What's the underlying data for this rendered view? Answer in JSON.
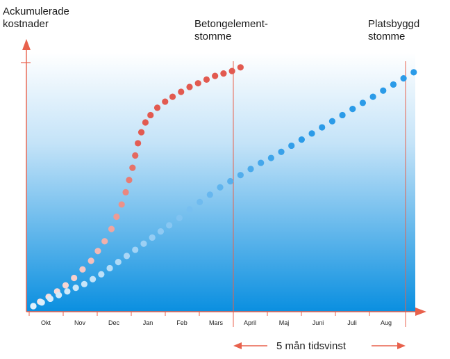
{
  "chart_data": {
    "type": "scatter",
    "ylabel": "Ackumulerade\nkostnader",
    "categories": [
      "Okt",
      "Nov",
      "Dec",
      "Jan",
      "Feb",
      "Mars",
      "April",
      "Maj",
      "Juni",
      "Juli",
      "Aug"
    ],
    "xlim": [
      0,
      11
    ],
    "ylim": [
      0,
      100
    ],
    "grid": false,
    "background_gradient": [
      "#ffffff",
      "#0a8fe0"
    ],
    "series": [
      {
        "name": "Betongelement-\nstomme",
        "color": "#e25a50",
        "points": [
          {
            "x": 0.0,
            "y": 0.0
          },
          {
            "x": 0.2,
            "y": 1.8
          },
          {
            "x": 0.45,
            "y": 3.8
          },
          {
            "x": 0.7,
            "y": 6.0
          },
          {
            "x": 0.95,
            "y": 8.5
          },
          {
            "x": 1.2,
            "y": 11.5
          },
          {
            "x": 1.45,
            "y": 15.0
          },
          {
            "x": 1.7,
            "y": 18.5
          },
          {
            "x": 1.9,
            "y": 22.5
          },
          {
            "x": 2.1,
            "y": 26.5
          },
          {
            "x": 2.3,
            "y": 31.5
          },
          {
            "x": 2.45,
            "y": 36.5
          },
          {
            "x": 2.6,
            "y": 41.5
          },
          {
            "x": 2.72,
            "y": 46.5
          },
          {
            "x": 2.82,
            "y": 51.5
          },
          {
            "x": 2.92,
            "y": 56.5
          },
          {
            "x": 3.0,
            "y": 61.5
          },
          {
            "x": 3.08,
            "y": 66.5
          },
          {
            "x": 3.18,
            "y": 71.0
          },
          {
            "x": 3.3,
            "y": 75.0
          },
          {
            "x": 3.45,
            "y": 78.0
          },
          {
            "x": 3.65,
            "y": 81.0
          },
          {
            "x": 3.88,
            "y": 83.5
          },
          {
            "x": 4.1,
            "y": 85.5
          },
          {
            "x": 4.35,
            "y": 87.5
          },
          {
            "x": 4.6,
            "y": 89.5
          },
          {
            "x": 4.85,
            "y": 91.0
          },
          {
            "x": 5.1,
            "y": 92.5
          },
          {
            "x": 5.35,
            "y": 94.0
          },
          {
            "x": 5.6,
            "y": 95.0
          },
          {
            "x": 5.85,
            "y": 96.0
          },
          {
            "x": 6.1,
            "y": 97.5
          }
        ]
      },
      {
        "name": "Platsbyggd\nstomme",
        "color": "#2b9be8",
        "points": [
          {
            "x": 0.0,
            "y": 0.0
          },
          {
            "x": 0.25,
            "y": 1.5
          },
          {
            "x": 0.5,
            "y": 3.0
          },
          {
            "x": 0.75,
            "y": 4.5
          },
          {
            "x": 1.0,
            "y": 6.0
          },
          {
            "x": 1.25,
            "y": 7.5
          },
          {
            "x": 1.5,
            "y": 9.0
          },
          {
            "x": 1.75,
            "y": 11.0
          },
          {
            "x": 2.0,
            "y": 13.0
          },
          {
            "x": 2.25,
            "y": 15.5
          },
          {
            "x": 2.5,
            "y": 18.0
          },
          {
            "x": 2.75,
            "y": 20.5
          },
          {
            "x": 3.0,
            "y": 23.0
          },
          {
            "x": 3.25,
            "y": 25.5
          },
          {
            "x": 3.5,
            "y": 28.0
          },
          {
            "x": 3.75,
            "y": 30.5
          },
          {
            "x": 4.0,
            "y": 33.0
          },
          {
            "x": 4.3,
            "y": 36.0
          },
          {
            "x": 4.6,
            "y": 39.5
          },
          {
            "x": 4.9,
            "y": 42.5
          },
          {
            "x": 5.2,
            "y": 45.5
          },
          {
            "x": 5.5,
            "y": 48.5
          },
          {
            "x": 5.8,
            "y": 51.0
          },
          {
            "x": 6.1,
            "y": 53.5
          },
          {
            "x": 6.4,
            "y": 56.0
          },
          {
            "x": 6.7,
            "y": 58.5
          },
          {
            "x": 7.0,
            "y": 60.5
          },
          {
            "x": 7.3,
            "y": 63.0
          },
          {
            "x": 7.6,
            "y": 65.5
          },
          {
            "x": 7.9,
            "y": 68.0
          },
          {
            "x": 8.2,
            "y": 70.5
          },
          {
            "x": 8.5,
            "y": 73.0
          },
          {
            "x": 8.8,
            "y": 75.5
          },
          {
            "x": 9.1,
            "y": 78.0
          },
          {
            "x": 9.4,
            "y": 80.5
          },
          {
            "x": 9.7,
            "y": 83.0
          },
          {
            "x": 10.0,
            "y": 85.5
          },
          {
            "x": 10.3,
            "y": 88.0
          },
          {
            "x": 10.6,
            "y": 90.5
          },
          {
            "x": 10.9,
            "y": 93.0
          },
          {
            "x": 11.2,
            "y": 95.5
          }
        ]
      }
    ],
    "annotations": [
      {
        "text": "5 mån tidsvinst",
        "from": "Mars",
        "to": "Aug"
      }
    ],
    "accent_color": "#e8614c"
  }
}
